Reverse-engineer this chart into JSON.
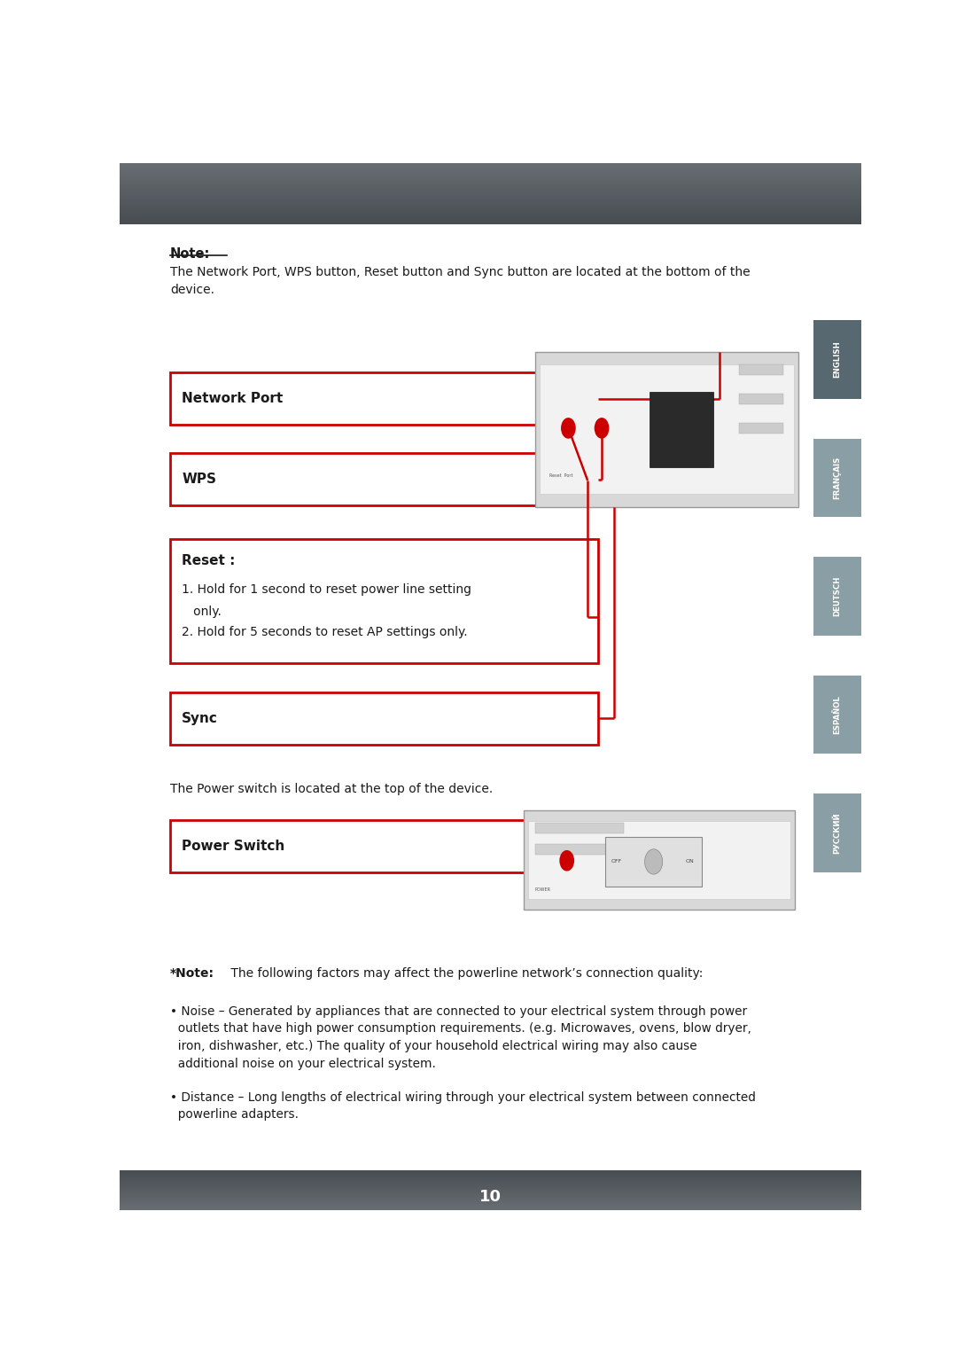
{
  "bg_color": "#ffffff",
  "sidebar_labels": [
    "ENGLISH",
    "FRANÇAIS",
    "DEUTSCH",
    "ESPAÑOL",
    "РУССКИЙ"
  ],
  "note_text": "The Network Port, WPS button, Reset button and Sync button are located at the bottom of the\ndevice.",
  "power_switch_text": "The Power switch is located at the top of the device.",
  "footer_text": "10",
  "red_color": "#cc0000",
  "text_color": "#1a1a1a",
  "reset_line1": "1. Hold for 1 second to reset power line setting",
  "reset_line1b": "   only.",
  "reset_line2": "2. Hold for 5 seconds to reset AP settings only.",
  "note2_bold": "*Note:",
  "note2_rest": " The following factors may affect the powerline network’s connection quality:",
  "bullet1": "• Noise – Generated by appliances that are connected to your electrical system through power\n  outlets that have high power consumption requirements. (e.g. Microwaves, ovens, blow dryer,\n  iron, dishwasher, etc.) The quality of your household electrical wiring may also cause\n  additional noise on your electrical system.",
  "bullet2": "• Distance – Long lengths of electrical wiring through your electrical system between connected\n  powerline adapters."
}
